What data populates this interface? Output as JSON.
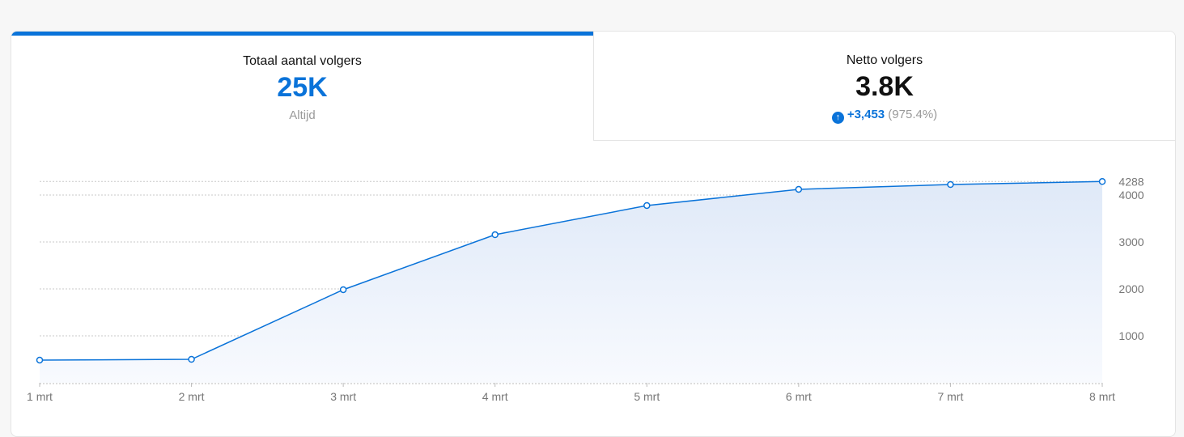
{
  "metrics": [
    {
      "title": "Totaal aantal volgers",
      "value": "25K",
      "sub": "Altijd"
    },
    {
      "title": "Netto volgers",
      "value": "3.8K",
      "change": "+3,453",
      "percent": "(975.4%)"
    }
  ],
  "colors": {
    "accent": "#0a73d9",
    "fill": "#e3edf9"
  },
  "chart_data": {
    "type": "area",
    "categories": [
      "1 mrt",
      "2 mrt",
      "3 mrt",
      "4 mrt",
      "5 mrt",
      "6 mrt",
      "7 mrt",
      "8 mrt"
    ],
    "values": [
      483,
      500,
      1983,
      3155,
      3776,
      4121,
      4224,
      4288
    ],
    "yticks": [
      1000,
      2000,
      3000,
      4000,
      4288
    ],
    "ylim": [
      0,
      4288
    ],
    "grid": true,
    "yaxis_position": "right"
  }
}
